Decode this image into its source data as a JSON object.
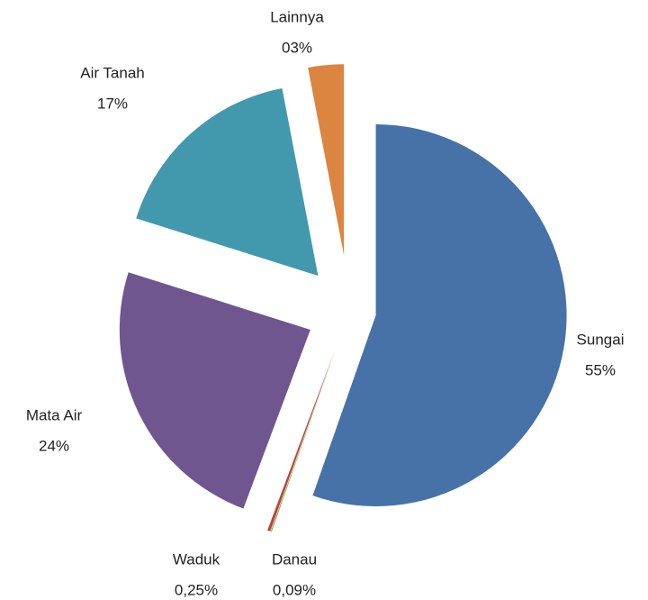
{
  "chart_data": {
    "type": "pie",
    "categories": [
      "Sungai",
      "Danau",
      "Waduk",
      "Mata Air",
      "Air Tanah",
      "Lainnya"
    ],
    "values": [
      55,
      0.09,
      0.25,
      24,
      17,
      3
    ],
    "value_labels": [
      "55%",
      "0,09%",
      "0,25%",
      "24%",
      "17%",
      "03%"
    ],
    "colors": [
      "#4672a8",
      "#8fae4c",
      "#b6473f",
      "#6f568f",
      "#4299ae",
      "#dc8540"
    ]
  }
}
